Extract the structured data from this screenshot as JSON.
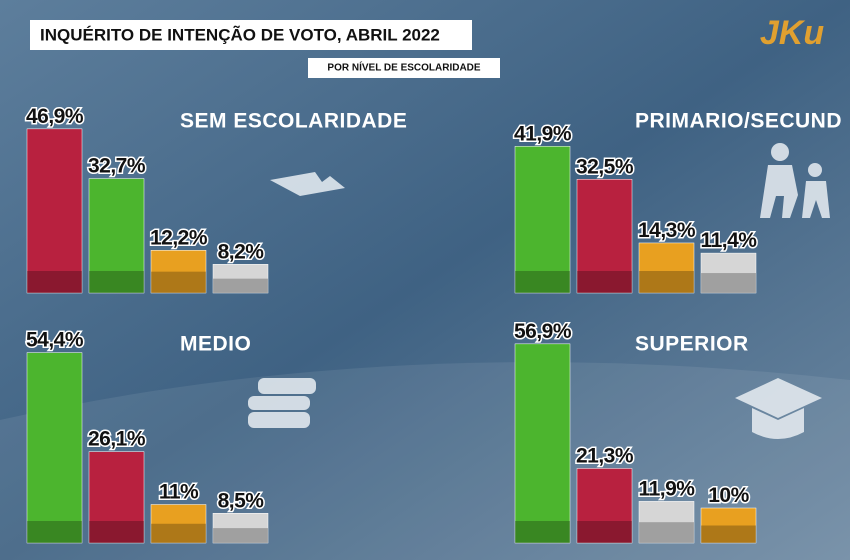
{
  "header": {
    "title": "INQUÉRITO DE INTENÇÃO DE VOTO, ABRIL 2022",
    "subtitle": "POR NÍVEL DE ESCOLARIDADE",
    "logo": "JKu"
  },
  "chart_data": [
    {
      "type": "bar",
      "title": "SEM ESCOLARIDADE",
      "categories": [
        null,
        null,
        null,
        null
      ],
      "values": [
        46.9,
        32.7,
        12.2,
        8.2
      ],
      "value_labels": [
        "46,9%",
        "32,7%",
        "12,2%",
        "8,2%"
      ],
      "colors": [
        "#b8213f",
        "#4cb52e",
        "#e8a020",
        "#d6d6d6"
      ]
    },
    {
      "type": "bar",
      "title": "PRIMARIO/SECUND",
      "categories": [
        null,
        null,
        null,
        null
      ],
      "values": [
        41.9,
        32.5,
        14.3,
        11.4
      ],
      "value_labels": [
        "41,9%",
        "32,5%",
        "14,3%",
        "11,4%"
      ],
      "colors": [
        "#4cb52e",
        "#b8213f",
        "#e8a020",
        "#d6d6d6"
      ]
    },
    {
      "type": "bar",
      "title": "MEDIO",
      "categories": [
        null,
        null,
        null,
        null
      ],
      "values": [
        54.4,
        26.1,
        11,
        8.5
      ],
      "value_labels": [
        "54,4%",
        "26,1%",
        "11%",
        "8,5%"
      ],
      "colors": [
        "#4cb52e",
        "#b8213f",
        "#e8a020",
        "#d6d6d6"
      ]
    },
    {
      "type": "bar",
      "title": "SUPERIOR",
      "categories": [
        null,
        null,
        null,
        null
      ],
      "values": [
        56.9,
        21.3,
        11.9,
        10
      ],
      "value_labels": [
        "56,9%",
        "21,3%",
        "11,9%",
        "10%"
      ],
      "colors": [
        "#4cb52e",
        "#b8213f",
        "#d6d6d6",
        "#e8a020"
      ]
    }
  ]
}
